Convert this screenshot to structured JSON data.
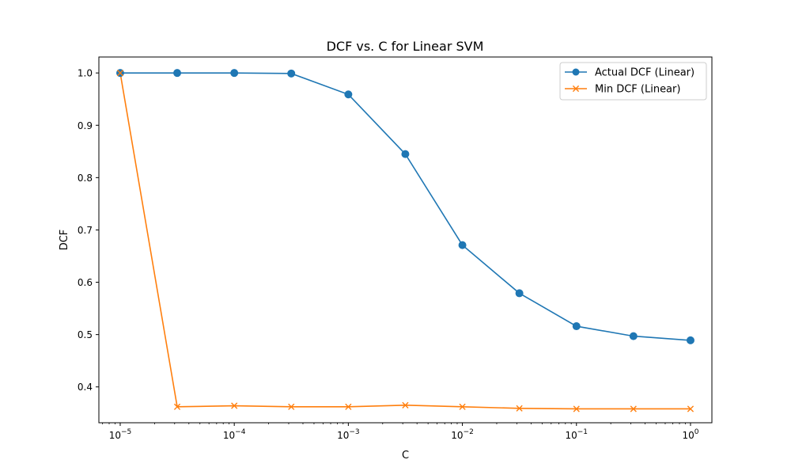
{
  "chart_data": {
    "type": "line",
    "title": "DCF vs. C for Linear SVM",
    "xlabel": "C",
    "ylabel": "DCF",
    "xscale": "log",
    "xlim": [
      6.5e-06,
      1.54
    ],
    "ylim": [
      0.3315,
      1.0305
    ],
    "grid": false,
    "legend_position": "top-right",
    "x": [
      1e-05,
      3.16e-05,
      0.0001,
      0.000316,
      0.001,
      0.00316,
      0.01,
      0.0316,
      0.1,
      0.316,
      1
    ],
    "x_ticks": [
      {
        "value": 1e-05,
        "base": "10",
        "exp": "−5"
      },
      {
        "value": 0.0001,
        "base": "10",
        "exp": "−4"
      },
      {
        "value": 0.001,
        "base": "10",
        "exp": "−3"
      },
      {
        "value": 0.01,
        "base": "10",
        "exp": "−2"
      },
      {
        "value": 0.1,
        "base": "10",
        "exp": "−1"
      },
      {
        "value": 1,
        "base": "10",
        "exp": "0"
      }
    ],
    "y_ticks": [
      {
        "value": 0.4,
        "label": "0.4"
      },
      {
        "value": 0.5,
        "label": "0.5"
      },
      {
        "value": 0.6,
        "label": "0.6"
      },
      {
        "value": 0.7,
        "label": "0.7"
      },
      {
        "value": 0.8,
        "label": "0.8"
      },
      {
        "value": 0.9,
        "label": "0.9"
      },
      {
        "value": 1.0,
        "label": "1.0"
      }
    ],
    "series": [
      {
        "name": "Actual DCF (Linear)",
        "color": "#1f77b4",
        "marker": "circle",
        "values": [
          1.0,
          1.0,
          1.0,
          0.999,
          0.959,
          0.845,
          0.671,
          0.579,
          0.516,
          0.497,
          0.489
        ]
      },
      {
        "name": "Min DCF (Linear)",
        "color": "#ff7f0e",
        "marker": "x",
        "values": [
          1.0,
          0.362,
          0.364,
          0.362,
          0.362,
          0.365,
          0.362,
          0.359,
          0.358,
          0.358,
          0.358
        ]
      }
    ]
  }
}
